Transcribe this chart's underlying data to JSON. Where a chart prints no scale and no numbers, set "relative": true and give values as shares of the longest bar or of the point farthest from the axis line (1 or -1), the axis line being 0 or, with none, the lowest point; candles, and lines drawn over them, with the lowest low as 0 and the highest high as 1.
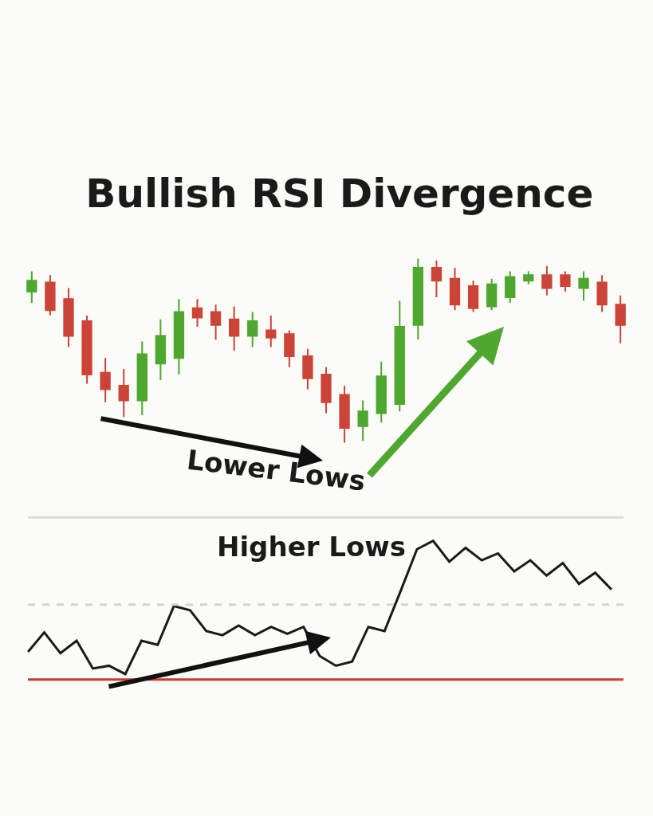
{
  "chart_data": [
    {
      "type": "candlestick",
      "title": "Bullish RSI Divergence",
      "relative": true,
      "tick_labels": false,
      "grid": false,
      "categories": [
        null,
        null,
        null,
        null,
        null,
        null,
        null,
        null,
        null,
        null,
        null,
        null,
        null,
        null,
        null,
        null,
        null,
        null,
        null,
        null,
        null,
        null,
        null,
        null,
        null,
        null,
        null,
        null,
        null,
        null,
        null,
        null,
        null
      ],
      "colors": [
        "#4ea72e",
        "#cc4437",
        "#cc4437",
        "#cc4437",
        "#cc4437",
        "#cc4437",
        "#4ea72e",
        "#4ea72e",
        "#4ea72e",
        "#cc4437",
        "#cc4437",
        "#cc4437",
        "#4ea72e",
        "#cc4437",
        "#cc4437",
        "#cc4437",
        "#cc4437",
        "#cc4437",
        "#4ea72e",
        "#4ea72e",
        "#4ea72e",
        "#4ea72e",
        "#cc4437",
        "#cc4437",
        "#cc4437",
        "#4ea72e",
        "#4ea72e",
        "#4ea72e",
        "#cc4437",
        "#cc4437",
        "#4ea72e",
        "#cc4437",
        "#cc4437"
      ],
      "ohlc": [
        [
          0.82,
          0.93,
          0.76,
          0.88
        ],
        [
          0.87,
          0.91,
          0.69,
          0.72
        ],
        [
          0.78,
          0.84,
          0.52,
          0.58
        ],
        [
          0.66,
          0.69,
          0.32,
          0.37
        ],
        [
          0.38,
          0.46,
          0.22,
          0.29
        ],
        [
          0.31,
          0.4,
          0.14,
          0.23
        ],
        [
          0.23,
          0.55,
          0.15,
          0.48
        ],
        [
          0.43,
          0.67,
          0.34,
          0.58
        ],
        [
          0.46,
          0.78,
          0.37,
          0.71
        ],
        [
          0.73,
          0.78,
          0.63,
          0.68
        ],
        [
          0.71,
          0.75,
          0.56,
          0.64
        ],
        [
          0.67,
          0.74,
          0.5,
          0.58
        ],
        [
          0.58,
          0.71,
          0.52,
          0.66
        ],
        [
          0.61,
          0.69,
          0.52,
          0.57
        ],
        [
          0.59,
          0.61,
          0.41,
          0.47
        ],
        [
          0.47,
          0.51,
          0.29,
          0.35
        ],
        [
          0.37,
          0.41,
          0.16,
          0.22
        ],
        [
          0.26,
          0.31,
          0,
          0.08
        ],
        [
          0.09,
          0.23,
          0.01,
          0.17
        ],
        [
          0.16,
          0.44,
          0.11,
          0.36
        ],
        [
          0.21,
          0.77,
          0.17,
          0.63
        ],
        [
          0.64,
          1,
          0.56,
          0.95
        ],
        [
          0.95,
          0.99,
          0.79,
          0.88
        ],
        [
          0.89,
          0.95,
          0.72,
          0.75
        ],
        [
          0.85,
          0.88,
          0.71,
          0.73
        ],
        [
          0.74,
          0.89,
          0.72,
          0.86
        ],
        [
          0.79,
          0.93,
          0.76,
          0.9
        ],
        [
          0.88,
          0.93,
          0.86,
          0.91
        ],
        [
          0.91,
          0.96,
          0.8,
          0.84
        ],
        [
          0.91,
          0.93,
          0.82,
          0.85
        ],
        [
          0.84,
          0.93,
          0.77,
          0.89
        ],
        [
          0.87,
          0.91,
          0.71,
          0.75
        ],
        [
          0.75,
          0.8,
          0.54,
          0.64
        ]
      ],
      "annotations": [
        "Lower Lows"
      ]
    },
    {
      "type": "line",
      "relative": true,
      "tick_labels": false,
      "grid": false,
      "marker": "none",
      "line_style": "solid",
      "categories": [
        null,
        null,
        null,
        null,
        null,
        null,
        null,
        null,
        null,
        null,
        null,
        null,
        null,
        null,
        null,
        null,
        null,
        null,
        null,
        null,
        null,
        null,
        null,
        null,
        null,
        null,
        null,
        null,
        null,
        null,
        null,
        null,
        null,
        null,
        null,
        null,
        null
      ],
      "series": [
        {
          "color": "#1a1a1a",
          "values": [
            0.2,
            0.34,
            0.19,
            0.28,
            0.08,
            0.1,
            0.04,
            0.28,
            0.25,
            0.53,
            0.5,
            0.35,
            0.32,
            0.39,
            0.32,
            0.38,
            0.33,
            0.38,
            0.17,
            0.1,
            0.13,
            0.38,
            0.35,
            0.64,
            0.94,
            1,
            0.85,
            0.95,
            0.86,
            0.91,
            0.78,
            0.86,
            0.75,
            0.84,
            0.69,
            0.77,
            0.65
          ]
        }
      ],
      "ref_lines": [
        {
          "axis": "y",
          "value": 0,
          "color": "#cc3b33",
          "line_style": "solid"
        },
        {
          "axis": "y",
          "value": 0.54,
          "color": "#d4d4d4",
          "line_style": "dashed"
        },
        {
          "axis": "y",
          "value": 1.17,
          "color": "#d8dcdc",
          "line_style": "solid"
        }
      ],
      "annotations": [
        "Higher Lows"
      ]
    }
  ]
}
